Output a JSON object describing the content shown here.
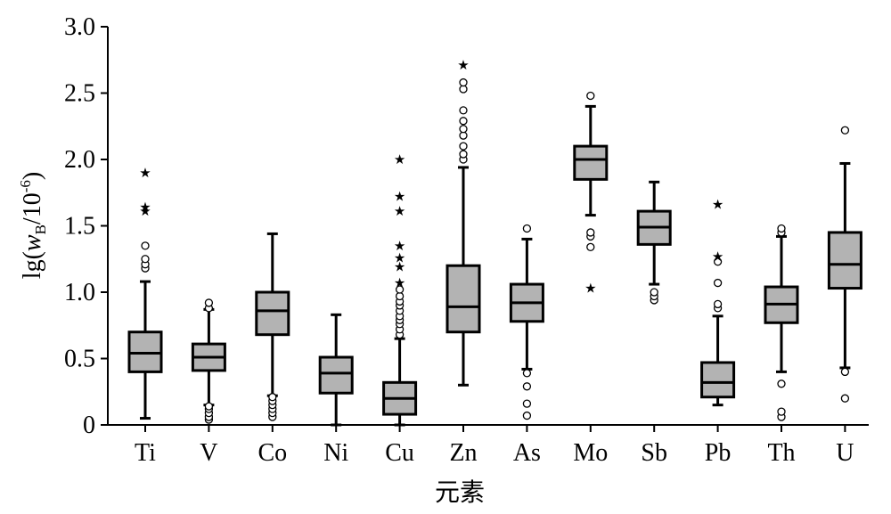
{
  "chart_data": {
    "type": "boxplot",
    "ylabel": {
      "prefix": "lg(",
      "italic": "w",
      "subscript": "B",
      "middle": "/10",
      "superscript": "-6",
      "suffix": ")"
    },
    "xlabel": "元素",
    "ylim": [
      0,
      3.0
    ],
    "yticks": [
      "0",
      "0.5",
      "1.0",
      "1.5",
      "2.0",
      "2.5",
      "3.0"
    ],
    "ytick_values": [
      0,
      0.5,
      1.0,
      1.5,
      2.0,
      2.5,
      3.0
    ],
    "box_color": "#b3b3b3",
    "categories": [
      "Ti",
      "V",
      "Co",
      "Ni",
      "Cu",
      "Zn",
      "As",
      "Mo",
      "Sb",
      "Pb",
      "Th",
      "U"
    ],
    "boxes": [
      {
        "name": "Ti",
        "whisker_low": 0.05,
        "q1": 0.4,
        "median": 0.54,
        "q3": 0.7,
        "whisker_high": 1.08,
        "outliers": [
          1.18,
          1.21,
          1.25,
          1.35
        ],
        "extremes": [
          1.61,
          1.64,
          1.9
        ]
      },
      {
        "name": "V",
        "whisker_low": 0.15,
        "q1": 0.41,
        "median": 0.51,
        "q3": 0.61,
        "whisker_high": 0.87,
        "outliers": [
          0.04,
          0.06,
          0.09,
          0.12,
          0.14,
          0.88,
          0.92
        ],
        "extremes": []
      },
      {
        "name": "Co",
        "whisker_low": 0.22,
        "q1": 0.68,
        "median": 0.86,
        "q3": 1.0,
        "whisker_high": 1.44,
        "outliers": [
          0.06,
          0.09,
          0.12,
          0.15,
          0.18,
          0.21
        ],
        "extremes": []
      },
      {
        "name": "Ni",
        "whisker_low": 0.0,
        "q1": 0.24,
        "median": 0.39,
        "q3": 0.51,
        "whisker_high": 0.83,
        "outliers": [],
        "extremes": []
      },
      {
        "name": "Cu",
        "whisker_low": 0.0,
        "q1": 0.08,
        "median": 0.2,
        "q3": 0.32,
        "whisker_high": 0.65,
        "outliers": [
          0.68,
          0.72,
          0.76,
          0.79,
          0.82,
          0.86,
          0.9,
          0.93,
          0.97,
          1.02
        ],
        "extremes": [
          1.07,
          1.19,
          1.26,
          1.35,
          1.61,
          1.72,
          2.0
        ]
      },
      {
        "name": "Zn",
        "whisker_low": 0.3,
        "q1": 0.7,
        "median": 0.89,
        "q3": 1.2,
        "whisker_high": 1.94,
        "outliers": [
          2.0,
          2.04,
          2.1,
          2.18,
          2.23,
          2.29,
          2.37,
          2.53,
          2.58
        ],
        "extremes": [
          2.71
        ]
      },
      {
        "name": "As",
        "whisker_low": 0.42,
        "q1": 0.78,
        "median": 0.92,
        "q3": 1.06,
        "whisker_high": 1.4,
        "outliers": [
          0.07,
          0.16,
          0.29,
          0.39,
          1.48
        ],
        "extremes": []
      },
      {
        "name": "Mo",
        "whisker_low": 1.58,
        "q1": 1.85,
        "median": 2.0,
        "q3": 2.1,
        "whisker_high": 2.4,
        "outliers": [
          1.34,
          1.42,
          1.45,
          2.48
        ],
        "extremes": [
          1.03
        ]
      },
      {
        "name": "Sb",
        "whisker_low": 1.06,
        "q1": 1.36,
        "median": 1.49,
        "q3": 1.61,
        "whisker_high": 1.83,
        "outliers": [
          0.94,
          0.97,
          1.0
        ],
        "extremes": []
      },
      {
        "name": "Pb",
        "whisker_low": 0.15,
        "q1": 0.21,
        "median": 0.32,
        "q3": 0.47,
        "whisker_high": 0.82,
        "outliers": [
          0.88,
          0.91,
          1.07,
          1.23
        ],
        "extremes": [
          1.27,
          1.66
        ]
      },
      {
        "name": "Th",
        "whisker_low": 0.4,
        "q1": 0.77,
        "median": 0.91,
        "q3": 1.04,
        "whisker_high": 1.42,
        "outliers": [
          0.06,
          0.1,
          0.31,
          1.45,
          1.48
        ],
        "extremes": []
      },
      {
        "name": "U",
        "whisker_low": 0.43,
        "q1": 1.03,
        "median": 1.21,
        "q3": 1.45,
        "whisker_high": 1.97,
        "outliers": [
          0.2,
          0.4,
          2.22
        ],
        "extremes": []
      }
    ]
  }
}
